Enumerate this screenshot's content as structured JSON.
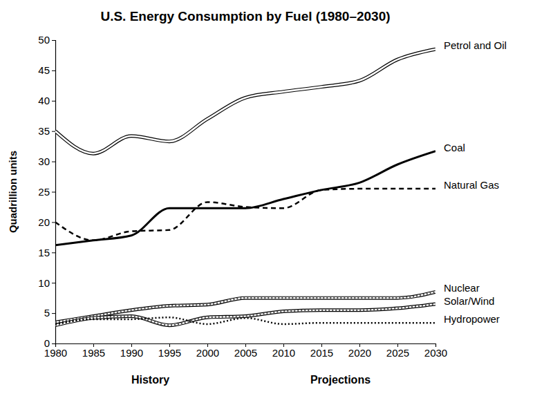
{
  "chart_data": {
    "type": "line",
    "title": "U.S. Energy Consumption by Fuel (1980–2030)",
    "y_label": "Quadrillion units",
    "annotations": [
      "History",
      "Projections"
    ],
    "x": [
      1980,
      1985,
      1990,
      1995,
      2000,
      2005,
      2010,
      2015,
      2020,
      2025,
      2030
    ],
    "xlim": [
      1980,
      2030
    ],
    "xticks": [
      1980,
      1985,
      1990,
      1995,
      2000,
      2005,
      2010,
      2015,
      2020,
      2025,
      2030
    ],
    "ylim": [
      0,
      50
    ],
    "yticks": [
      0,
      5,
      10,
      15,
      20,
      25,
      30,
      35,
      40,
      45,
      50
    ],
    "grid": false,
    "series": [
      {
        "name": "Petrol and Oil",
        "color": "#000000",
        "line_style": "double",
        "values": [
          35,
          31.3,
          34.2,
          33.3,
          37,
          40.5,
          41.5,
          42.3,
          43.3,
          46.8,
          48.5
        ]
      },
      {
        "name": "Coal",
        "color": "#000000",
        "line_style": "solid",
        "values": [
          16.2,
          17,
          17.8,
          22.3,
          22.3,
          22.3,
          23.8,
          25.3,
          26.5,
          29.5,
          31.7
        ]
      },
      {
        "name": "Natural Gas",
        "color": "#000000",
        "line_style": "dashed",
        "values": [
          20,
          17,
          18.5,
          18.7,
          23.3,
          22.5,
          22.3,
          25.3,
          25.5,
          25.5,
          25.5
        ]
      },
      {
        "name": "Nuclear",
        "color": "#000000",
        "line_style": "hatched",
        "values": [
          3.5,
          4.5,
          5.5,
          6.2,
          6.4,
          7.5,
          7.5,
          7.5,
          7.5,
          7.5,
          8.5
        ]
      },
      {
        "name": "Solar/Wind",
        "color": "#000000",
        "line_style": "hatched",
        "values": [
          3,
          4.2,
          4.5,
          3,
          4.3,
          4.5,
          5.3,
          5.5,
          5.5,
          5.8,
          6.5
        ]
      },
      {
        "name": "Hydropower",
        "color": "#000000",
        "line_style": "dotted",
        "values": [
          3.2,
          4,
          4,
          4.3,
          3.2,
          4.2,
          3.2,
          3.4,
          3.4,
          3.4,
          3.4
        ]
      }
    ]
  }
}
